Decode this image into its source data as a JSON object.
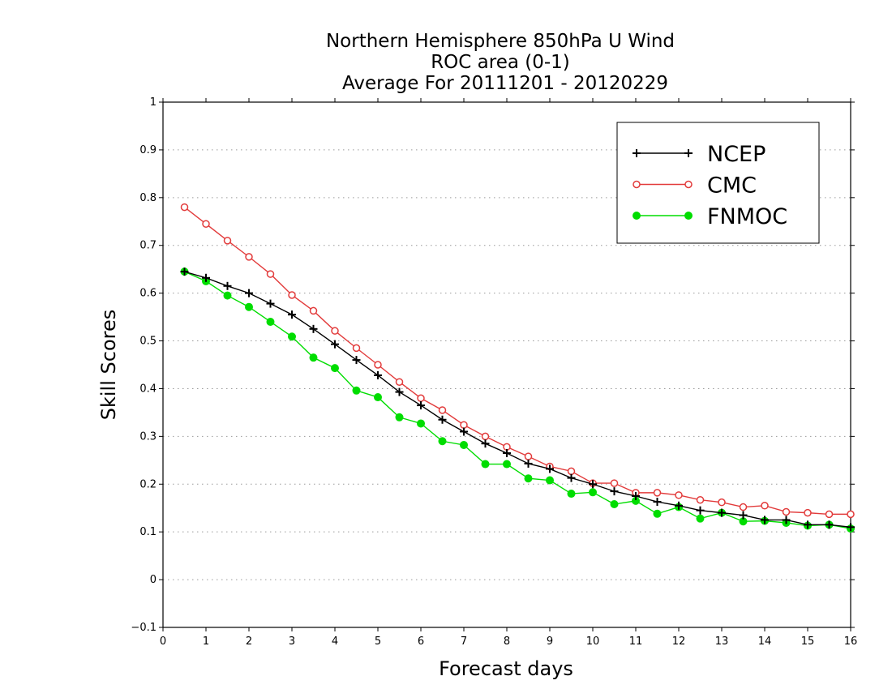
{
  "chart_data": {
    "type": "line",
    "title": [
      "Northern Hemisphere 850hPa U Wind",
      "ROC area (0-1)",
      "Average For 20111201 - 20120229"
    ],
    "xlabel": "Forecast days",
    "ylabel": "Skill Scores",
    "xlim": [
      0,
      16
    ],
    "ylim": [
      -0.1,
      1
    ],
    "xticks": [
      "0",
      "1",
      "2",
      "3",
      "4",
      "5",
      "6",
      "7",
      "8",
      "9",
      "10",
      "11",
      "12",
      "13",
      "14",
      "15",
      "16"
    ],
    "yticks": [
      "−0.1",
      "0",
      "0.1",
      "0.2",
      "0.3",
      "0.4",
      "0.5",
      "0.6",
      "0.7",
      "0.8",
      "0.9",
      "1"
    ],
    "grid": true,
    "legend_position": "top-right",
    "x": [
      0.5,
      1,
      1.5,
      2,
      2.5,
      3,
      3.5,
      4,
      4.5,
      5,
      5.5,
      6,
      6.5,
      7,
      7.5,
      8,
      8.5,
      9,
      9.5,
      10,
      10.5,
      11,
      11.5,
      12,
      12.5,
      13,
      13.5,
      14,
      14.5,
      15,
      15.5,
      16
    ],
    "series": [
      {
        "name": "NCEP",
        "color": "#000000",
        "marker": "plus",
        "values": [
          0.645,
          0.632,
          0.615,
          0.6,
          0.578,
          0.555,
          0.525,
          0.493,
          0.46,
          0.428,
          0.393,
          0.365,
          0.335,
          0.31,
          0.285,
          0.265,
          0.243,
          0.232,
          0.213,
          0.2,
          0.185,
          0.175,
          0.163,
          0.155,
          0.145,
          0.14,
          0.135,
          0.125,
          0.125,
          0.115,
          0.115,
          0.11
        ]
      },
      {
        "name": "CMC",
        "color": "#e23b3b",
        "marker": "open-circle",
        "values": [
          0.78,
          0.745,
          0.71,
          0.676,
          0.64,
          0.596,
          0.563,
          0.521,
          0.485,
          0.45,
          0.414,
          0.38,
          0.355,
          0.324,
          0.3,
          0.278,
          0.258,
          0.237,
          0.227,
          0.202,
          0.202,
          0.182,
          0.182,
          0.177,
          0.167,
          0.162,
          0.152,
          0.155,
          0.142,
          0.14,
          0.137,
          0.137
        ]
      },
      {
        "name": "FNMOC",
        "color": "#00dd00",
        "marker": "filled-circle",
        "values": [
          0.645,
          0.625,
          0.595,
          0.571,
          0.54,
          0.509,
          0.465,
          0.443,
          0.396,
          0.382,
          0.34,
          0.327,
          0.29,
          0.282,
          0.242,
          0.242,
          0.212,
          0.208,
          0.18,
          0.183,
          0.158,
          0.165,
          0.138,
          0.152,
          0.128,
          0.14,
          0.122,
          0.123,
          0.119,
          0.113,
          0.115,
          0.107
        ]
      }
    ]
  }
}
